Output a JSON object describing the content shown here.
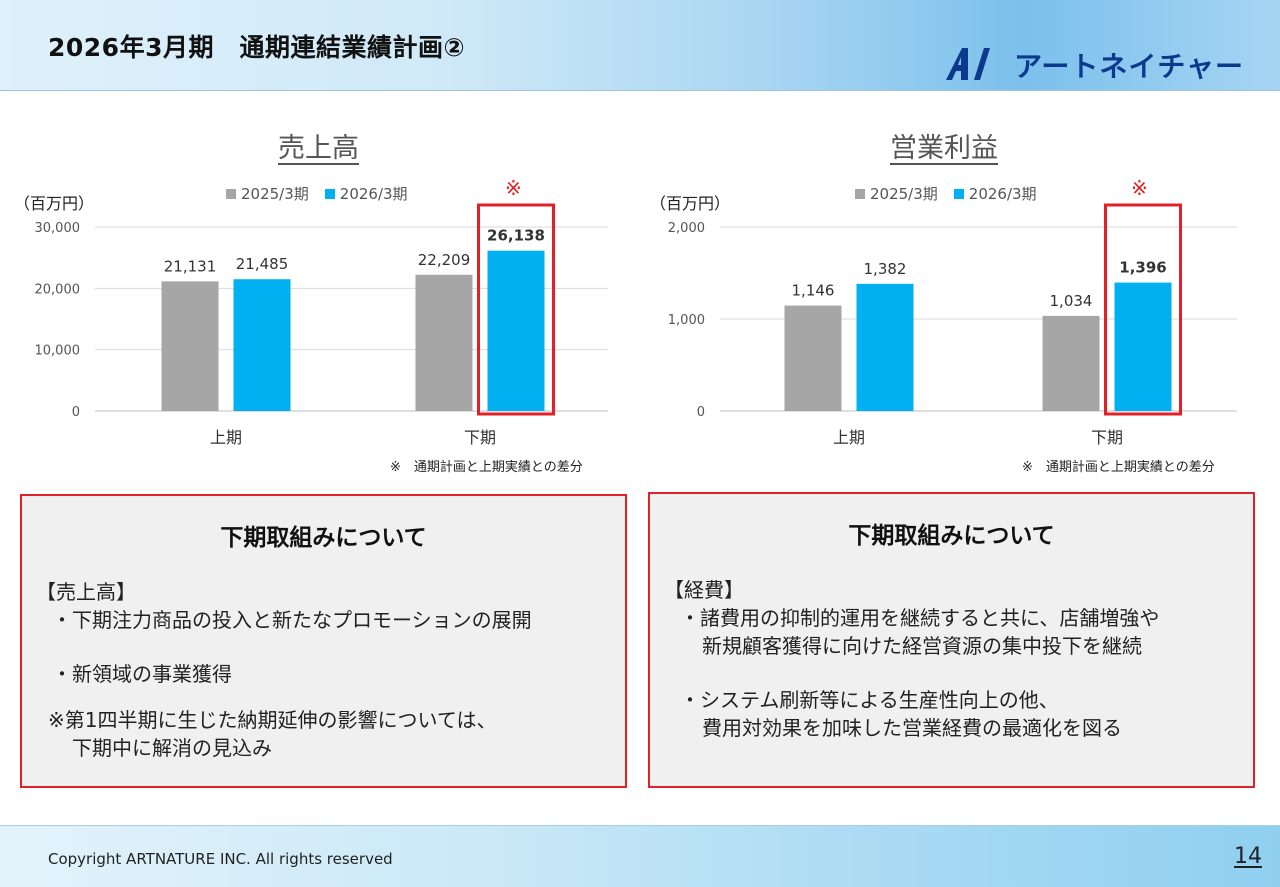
{
  "header": {
    "title": "2026年3月期　通期連結業績計画②",
    "logo_text": "アートネイチャー",
    "logo_mark": "A/"
  },
  "colors": {
    "prev": "#a6a6a6",
    "curr": "#00b0f0",
    "highlight": "#e02228"
  },
  "chart_data": [
    {
      "type": "bar",
      "title": "売上高",
      "ylabel": "（百万円）",
      "categories": [
        "上期",
        "下期"
      ],
      "series": [
        {
          "name": "2025/3期",
          "values": [
            21131,
            22209
          ],
          "labels": [
            "21,131",
            "22,209"
          ]
        },
        {
          "name": "2026/3期",
          "values": [
            21485,
            26138
          ],
          "labels": [
            "21,485",
            "26,138"
          ]
        }
      ],
      "ylim": [
        0,
        30000
      ],
      "yticks": [
        0,
        10000,
        20000,
        30000
      ],
      "ytick_labels": [
        "0",
        "10,000",
        "20,000",
        "30,000"
      ],
      "highlight": {
        "category": "下期",
        "series": "2026/3期",
        "mark": "※"
      },
      "footnote": "※　通期計画と上期実績との差分"
    },
    {
      "type": "bar",
      "title": "営業利益",
      "ylabel": "（百万円）",
      "categories": [
        "上期",
        "下期"
      ],
      "series": [
        {
          "name": "2025/3期",
          "values": [
            1146,
            1034
          ],
          "labels": [
            "1,146",
            "1,034"
          ]
        },
        {
          "name": "2026/3期",
          "values": [
            1382,
            1396
          ],
          "labels": [
            "1,382",
            "1,396"
          ]
        }
      ],
      "ylim": [
        0,
        2000
      ],
      "yticks": [
        0,
        1000,
        2000
      ],
      "ytick_labels": [
        "0",
        "1,000",
        "2,000"
      ],
      "highlight": {
        "category": "下期",
        "series": "2026/3期",
        "mark": "※"
      },
      "footnote": "※　通期計画と上期実績との差分"
    }
  ],
  "left_box": {
    "title": "下期取組みについて",
    "heading": "【売上高】",
    "items": [
      "・下期注力商品の投入と新たなプロモーションの展開",
      "・新領域の事業獲得"
    ],
    "note_line1": "※第1四半期に生じた納期延伸の影響については、",
    "note_line2": "下期中に解消の見込み"
  },
  "right_box": {
    "title": "下期取組みについて",
    "heading": "【経費】",
    "item1_line1": "・諸費用の抑制的運用を継続すると共に、店舗増強や",
    "item1_line2": "新規顧客獲得に向けた経営資源の集中投下を継続",
    "item2_line1": "・システム刷新等による生産性向上の他、",
    "item2_line2": "費用対効果を加味した営業経費の最適化を図る"
  },
  "footer": {
    "copyright": "Copyright ARTNATURE INC. All rights reserved",
    "page_number": "14"
  }
}
